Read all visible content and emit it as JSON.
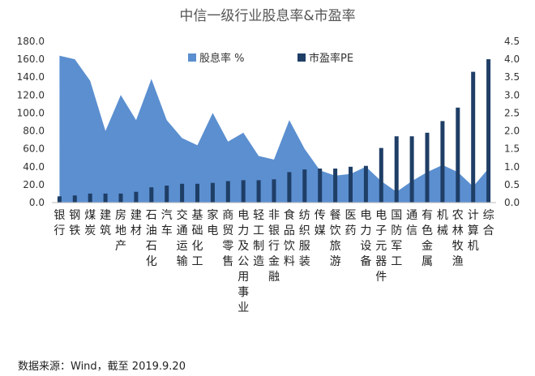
{
  "chart_data": {
    "type": "bar",
    "title": "中信一级行业股息率&市盈率",
    "categories": [
      "银行",
      "钢铁",
      "煤炭",
      "建筑",
      "房地产",
      "建材",
      "石油石化",
      "汽车",
      "交通运输",
      "基础化工",
      "家电",
      "商贸零售",
      "电力及公用事业",
      "轻工制造",
      "非银行金融",
      "食品饮料",
      "纺织服装",
      "传媒",
      "餐饮旅游",
      "医药",
      "电力设备",
      "电子元器件",
      "国防军工",
      "通信",
      "有色金属",
      "机械",
      "农林牧渔",
      "计算机",
      "综合"
    ],
    "x_tick_labels": [
      "银行",
      "钢铁",
      "煤炭",
      "建筑",
      "房地产",
      "建材",
      "石油石化",
      "汽车",
      "交通运输",
      "基础化工",
      "家电",
      "商贸零售",
      "电力及公用事业",
      "轻工制造",
      "非银行金融",
      "食品饮料",
      "纺织服装",
      "传媒",
      "餐饮旅游",
      "医药",
      "电力设备",
      "电子元器件",
      "国防军工",
      "通信",
      "有色金属",
      "机械",
      "农林牧渔",
      "计算机",
      "综合"
    ],
    "series": [
      {
        "name": "股息率 %",
        "type": "area",
        "axis": "right",
        "color": "#5b8fd0",
        "values": [
          4.1,
          4.0,
          3.4,
          2.0,
          3.0,
          2.3,
          3.45,
          2.3,
          1.8,
          1.6,
          2.5,
          1.7,
          1.95,
          1.3,
          1.2,
          2.3,
          1.5,
          0.9,
          0.75,
          0.8,
          1.0,
          0.6,
          0.3,
          0.6,
          0.85,
          1.05,
          0.85,
          0.45,
          0.95
        ]
      },
      {
        "name": "市盈率PE",
        "type": "bar",
        "axis": "left",
        "color": "#1f3e66",
        "values": [
          7,
          8,
          10,
          10,
          10,
          12,
          17,
          19,
          21,
          21,
          22,
          24,
          25,
          25,
          26,
          34,
          37,
          38,
          38,
          40,
          41,
          61,
          74,
          74,
          78,
          91,
          106,
          146,
          160
        ]
      }
    ],
    "y_left": {
      "min": 0,
      "max": 180,
      "ticks": [
        "0.0",
        "20.0",
        "40.0",
        "60.0",
        "80.0",
        "100.0",
        "120.0",
        "140.0",
        "160.0",
        "180.0"
      ]
    },
    "y_right": {
      "min": 0,
      "max": 4.5,
      "ticks": [
        "0.0",
        "0.5",
        "1.0",
        "1.5",
        "2.0",
        "2.5",
        "3.0",
        "3.5",
        "4.0",
        "4.5"
      ]
    },
    "legend_position": "top-center",
    "grid": false
  },
  "source_note": "数据来源：Wind，截至 2019.9.20"
}
